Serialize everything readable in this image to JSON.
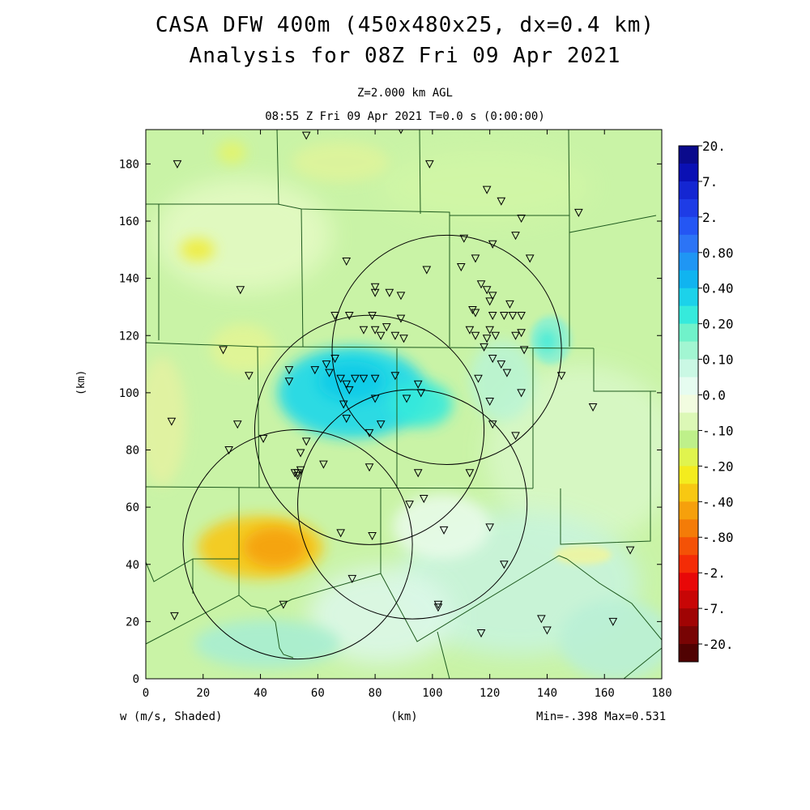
{
  "title": {
    "line1": "CASA DFW 400m (450x480x25, dx=0.4 km)",
    "line2": "Analysis for 08Z Fri 09 Apr 2021"
  },
  "subtitle": {
    "line1": "Z=2.000 km AGL",
    "line2": "08:55 Z Fri 09 Apr 2021    T=0.0 s (0:00:00)"
  },
  "footer": {
    "variable": "w (m/s, Shaded)",
    "xunit": "(km)",
    "minmax": "Min=-.398 Max=0.531"
  },
  "colors": {
    "background_field": "#c9f3a6",
    "county_lines": "#1e5a1e",
    "radar_rings": "#000000"
  },
  "chart_data": {
    "type": "heatmap",
    "field": "vertical velocity w (m/s)",
    "xlabel": "(km)",
    "ylabel": "(km)",
    "xlim": [
      0,
      180
    ],
    "ylim": [
      0,
      192
    ],
    "x_ticks": [
      0,
      20,
      40,
      60,
      80,
      100,
      120,
      140,
      160,
      180
    ],
    "y_ticks": [
      0,
      20,
      40,
      60,
      80,
      100,
      120,
      140,
      160,
      180
    ],
    "min": -0.398,
    "max": 0.531,
    "colorbar": [
      {
        "label": "20.",
        "color": "#0a0a8c"
      },
      {
        "label": "",
        "color": "#0a10b4"
      },
      {
        "label": "7.",
        "color": "#1426d2"
      },
      {
        "label": "",
        "color": "#1e3ce6"
      },
      {
        "label": "2.",
        "color": "#2456f4"
      },
      {
        "label": "",
        "color": "#2c74f6"
      },
      {
        "label": "0.80",
        "color": "#1f96f4"
      },
      {
        "label": "",
        "color": "#10b4f0"
      },
      {
        "label": "0.40",
        "color": "#1cd2ea"
      },
      {
        "label": "",
        "color": "#36eadc"
      },
      {
        "label": "0.20",
        "color": "#70f2ca"
      },
      {
        "label": "",
        "color": "#a2f6d2"
      },
      {
        "label": "0.10",
        "color": "#caf8e4"
      },
      {
        "label": "",
        "color": "#e6fcf0"
      },
      {
        "label": "0.0",
        "color": "#f2fce0"
      },
      {
        "label": "",
        "color": "#dcf8b6"
      },
      {
        "label": "-.10",
        "color": "#bef08a"
      },
      {
        "label": "",
        "color": "#e0f44e"
      },
      {
        "label": "-.20",
        "color": "#f4ec1e"
      },
      {
        "label": "",
        "color": "#f8c812"
      },
      {
        "label": "-.40",
        "color": "#f6a00c"
      },
      {
        "label": "",
        "color": "#f47c08"
      },
      {
        "label": "-.80",
        "color": "#f45206"
      },
      {
        "label": "",
        "color": "#f42c06"
      },
      {
        "label": "-2.",
        "color": "#e80808"
      },
      {
        "label": "",
        "color": "#c80606"
      },
      {
        "label": "-7.",
        "color": "#a00404"
      },
      {
        "label": "",
        "color": "#780404"
      },
      {
        "label": "-20.",
        "color": "#500202"
      }
    ],
    "updraft_regions": [
      {
        "cx": 72,
        "cy": 100,
        "rx": 26,
        "ry": 16,
        "value": 0.4
      },
      {
        "cx": 72,
        "cy": 104,
        "rx": 12,
        "ry": 7,
        "value": 0.53
      },
      {
        "cx": 96,
        "cy": 96,
        "rx": 11,
        "ry": 8,
        "value": 0.35
      },
      {
        "cx": 140,
        "cy": 118,
        "rx": 3,
        "ry": 4,
        "value": 0.3
      }
    ],
    "downdraft_regions": [
      {
        "cx": 40,
        "cy": 46,
        "rx": 22,
        "ry": 11,
        "value": -0.25
      },
      {
        "cx": 45,
        "cy": 46,
        "rx": 11,
        "ry": 7,
        "value": -0.398
      },
      {
        "cx": 18,
        "cy": 150,
        "rx": 6,
        "ry": 4,
        "value": -0.2
      },
      {
        "cx": 30,
        "cy": 184,
        "rx": 5,
        "ry": 4,
        "value": -0.18
      }
    ],
    "radar_rings": [
      {
        "x": 105,
        "y": 115,
        "r": 40
      },
      {
        "x": 78,
        "y": 87,
        "r": 40
      },
      {
        "x": 93,
        "y": 61,
        "r": 40
      },
      {
        "x": 53,
        "y": 47,
        "r": 40
      }
    ],
    "stations": [
      [
        11,
        180
      ],
      [
        56,
        190
      ],
      [
        89,
        192
      ],
      [
        99,
        180
      ],
      [
        119,
        171
      ],
      [
        124,
        167
      ],
      [
        131,
        161
      ],
      [
        151,
        163
      ],
      [
        111,
        154
      ],
      [
        121,
        152
      ],
      [
        129,
        155
      ],
      [
        134,
        147
      ],
      [
        33,
        136
      ],
      [
        70,
        146
      ],
      [
        80,
        137
      ],
      [
        80,
        135
      ],
      [
        85,
        135
      ],
      [
        89,
        134
      ],
      [
        98,
        143
      ],
      [
        110,
        144
      ],
      [
        115,
        147
      ],
      [
        117,
        138
      ],
      [
        119,
        136
      ],
      [
        121,
        134
      ],
      [
        114,
        129
      ],
      [
        115,
        128
      ],
      [
        120,
        132
      ],
      [
        121,
        127
      ],
      [
        125,
        127
      ],
      [
        127,
        131
      ],
      [
        128,
        127
      ],
      [
        131,
        127
      ],
      [
        66,
        127
      ],
      [
        71,
        127
      ],
      [
        79,
        127
      ],
      [
        89,
        126
      ],
      [
        76,
        122
      ],
      [
        80,
        122
      ],
      [
        84,
        123
      ],
      [
        82,
        120
      ],
      [
        87,
        120
      ],
      [
        90,
        119
      ],
      [
        113,
        122
      ],
      [
        115,
        120
      ],
      [
        119,
        119
      ],
      [
        120,
        122
      ],
      [
        122,
        120
      ],
      [
        129,
        120
      ],
      [
        131,
        121
      ],
      [
        132,
        115
      ],
      [
        118,
        116
      ],
      [
        121,
        112
      ],
      [
        124,
        110
      ],
      [
        126,
        107
      ],
      [
        27,
        115
      ],
      [
        36,
        106
      ],
      [
        59,
        108
      ],
      [
        66,
        112
      ],
      [
        63,
        110
      ],
      [
        64,
        107
      ],
      [
        68,
        105
      ],
      [
        70,
        103
      ],
      [
        71,
        101
      ],
      [
        73,
        105
      ],
      [
        76,
        105
      ],
      [
        80,
        105
      ],
      [
        87,
        106
      ],
      [
        116,
        105
      ],
      [
        145,
        106
      ],
      [
        50,
        108
      ],
      [
        50,
        104
      ],
      [
        95,
        103
      ],
      [
        96,
        100
      ],
      [
        91,
        98
      ],
      [
        80,
        98
      ],
      [
        69,
        96
      ],
      [
        120,
        97
      ],
      [
        131,
        100
      ],
      [
        9,
        90
      ],
      [
        32,
        89
      ],
      [
        70,
        91
      ],
      [
        82,
        89
      ],
      [
        78,
        86
      ],
      [
        121,
        89
      ],
      [
        129,
        85
      ],
      [
        29,
        80
      ],
      [
        41,
        84
      ],
      [
        56,
        83
      ],
      [
        54,
        79
      ],
      [
        52,
        72
      ],
      [
        53,
        72
      ],
      [
        53,
        71
      ],
      [
        54,
        73
      ],
      [
        62,
        75
      ],
      [
        78,
        74
      ],
      [
        95,
        72
      ],
      [
        113,
        72
      ],
      [
        97,
        63
      ],
      [
        92,
        61
      ],
      [
        68,
        51
      ],
      [
        79,
        50
      ],
      [
        104,
        52
      ],
      [
        120,
        53
      ],
      [
        125,
        40
      ],
      [
        72,
        35
      ],
      [
        102,
        26
      ],
      [
        102,
        25
      ],
      [
        10,
        22
      ],
      [
        138,
        21
      ],
      [
        140,
        17
      ],
      [
        163,
        20
      ],
      [
        169,
        45
      ],
      [
        117,
        16
      ],
      [
        156,
        95
      ],
      [
        48,
        26
      ]
    ]
  }
}
